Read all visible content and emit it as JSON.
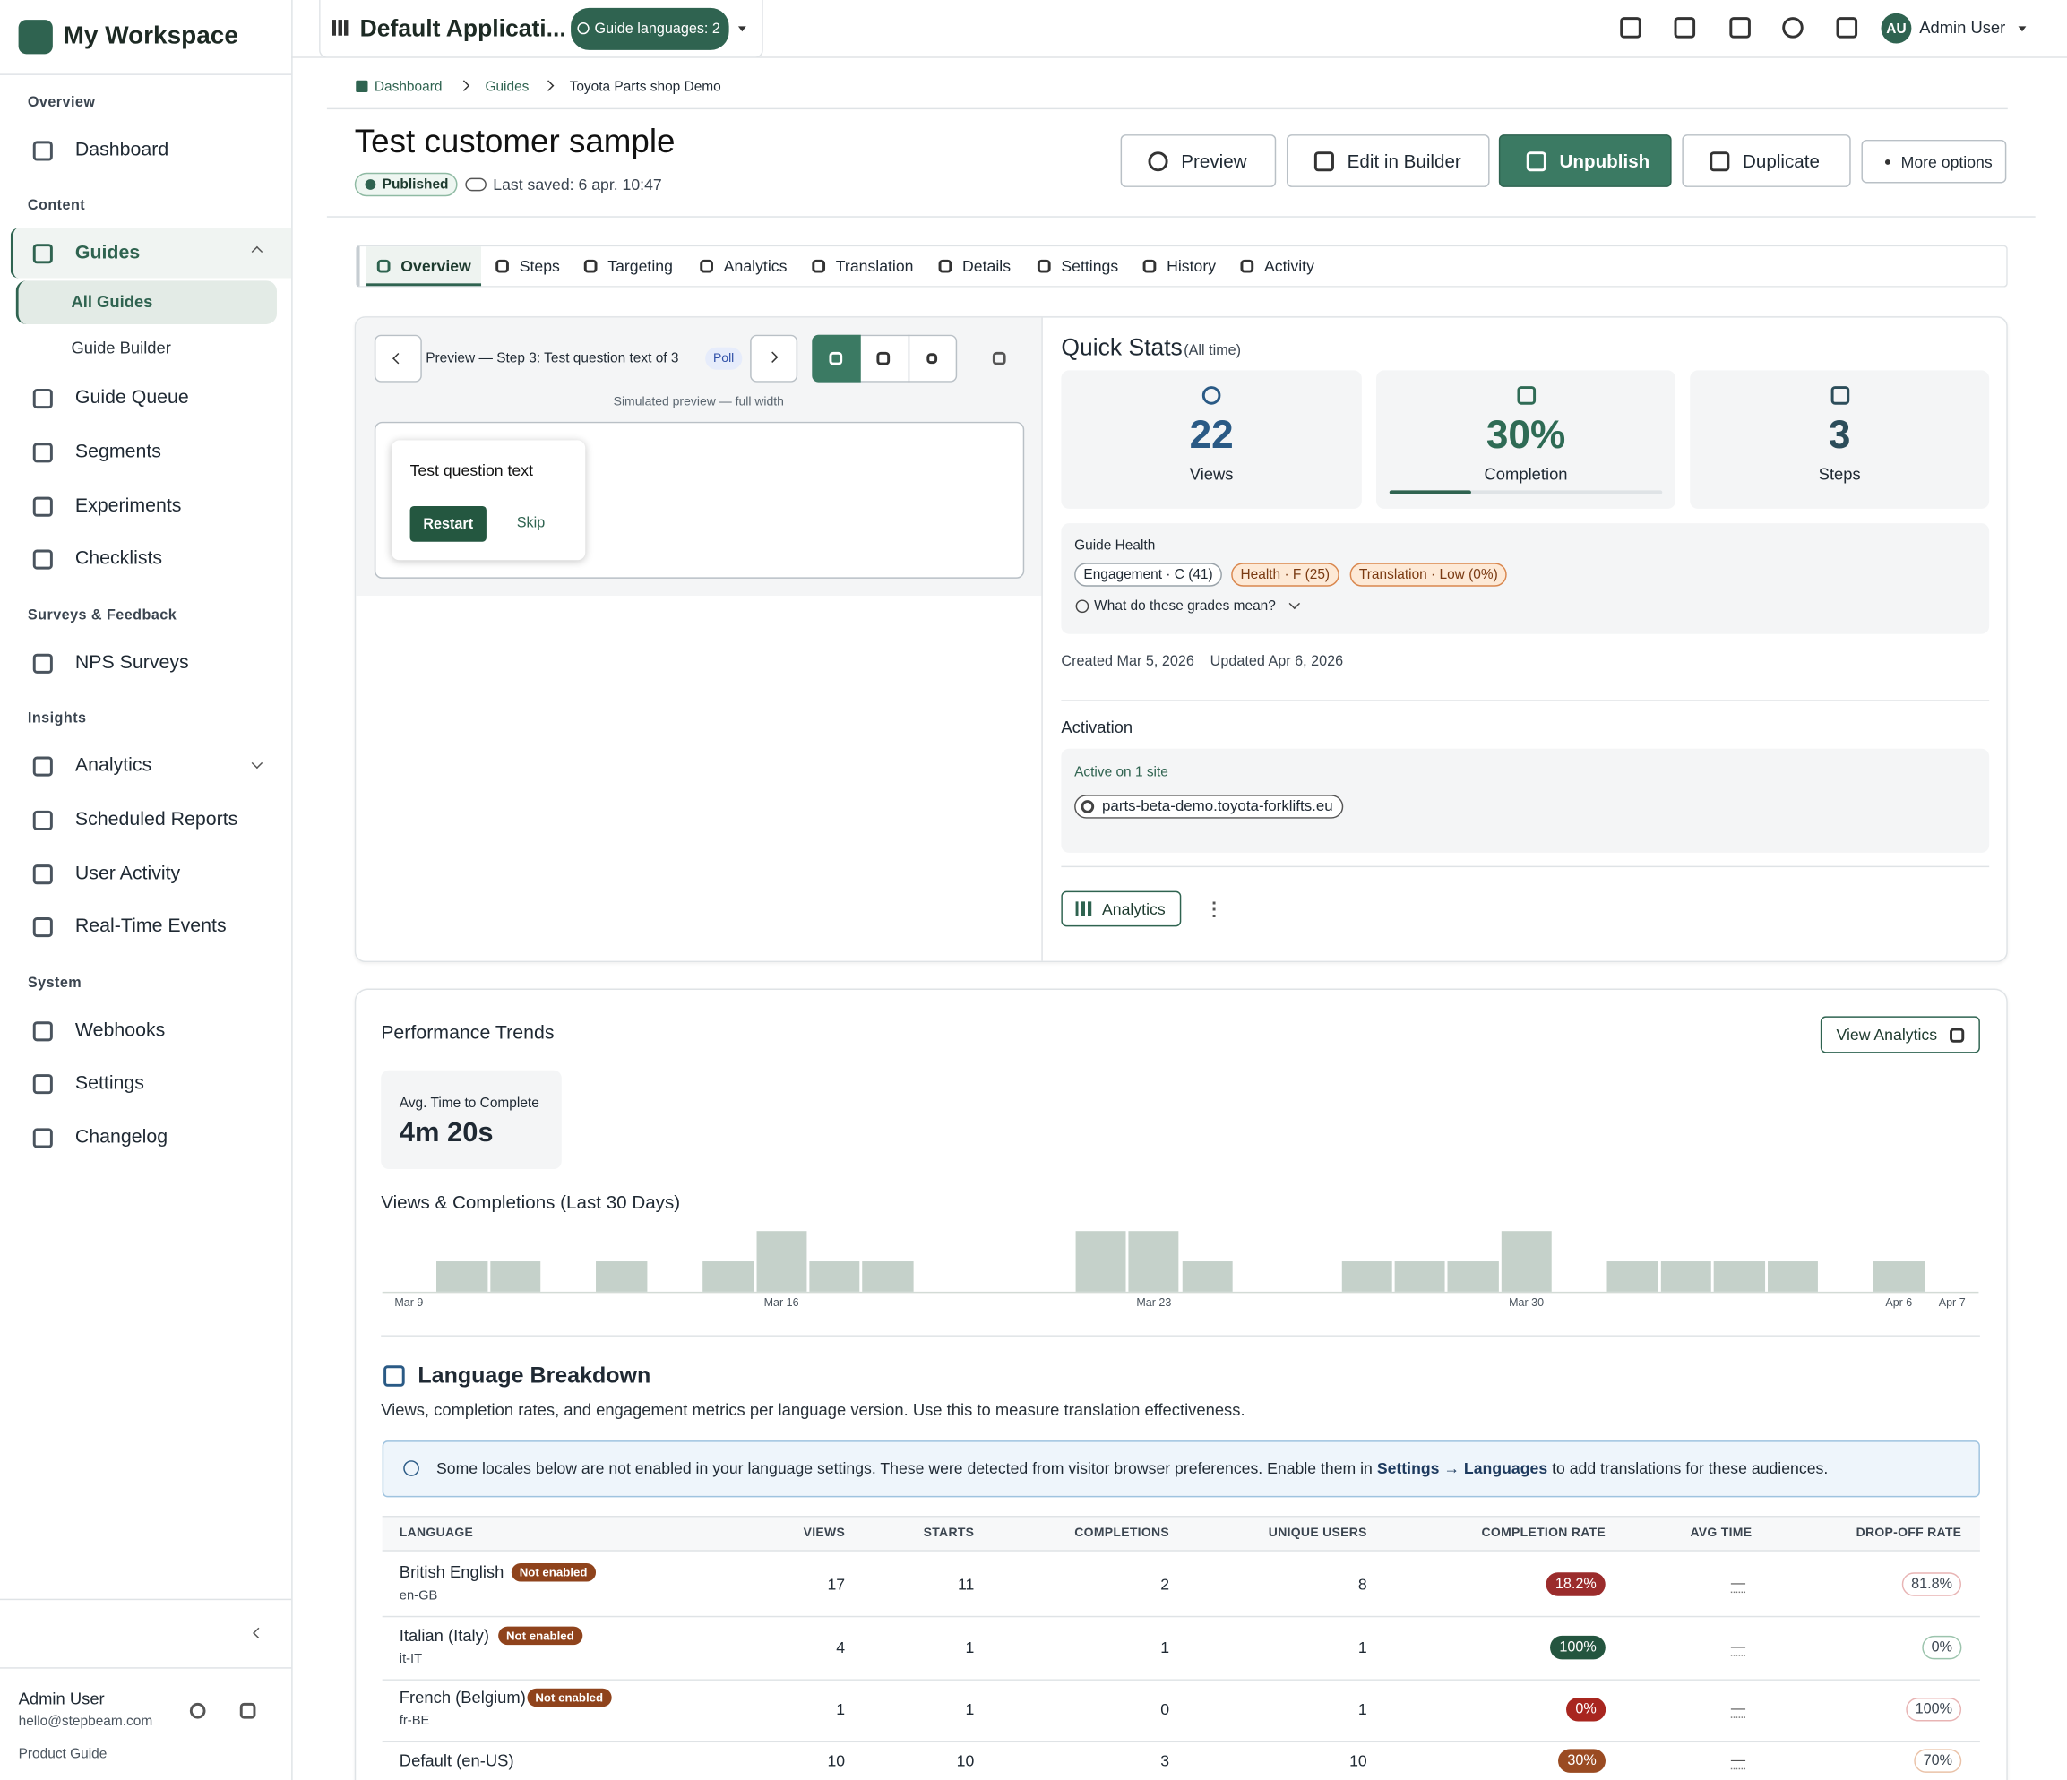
{
  "sidebar": {
    "workspace": "My Workspace",
    "groups": [
      {
        "title": "Overview",
        "items": [
          "Dashboard"
        ]
      },
      {
        "title": "Content",
        "items": [
          "Guides",
          "All Guides",
          "Guide Builder",
          "Guide Queue",
          "Segments",
          "Experiments",
          "Checklists"
        ]
      },
      {
        "title": "Surveys & Feedback",
        "items": [
          "NPS Surveys"
        ]
      },
      {
        "title": "Insights",
        "items": [
          "Analytics",
          "Scheduled Reports",
          "User Activity",
          "Real-Time Events"
        ]
      },
      {
        "title": "System",
        "items": [
          "Webhooks",
          "Settings",
          "Changelog"
        ]
      }
    ],
    "user_name": "Admin User",
    "user_email": "hello@stepbeam.com",
    "footer": "Product Guide"
  },
  "topbar": {
    "app_name": "Default Applicati...",
    "languages": "Guide languages: 2",
    "avatar": "AU",
    "user_name": "Admin User"
  },
  "breadcrumb": [
    "Dashboard",
    "Guides",
    "Toyota Parts shop Demo"
  ],
  "header": {
    "title": "Test customer sample",
    "status": "Published",
    "last_saved": "Last saved: 6 apr. 10:47",
    "actions": [
      "Preview",
      "Edit in Builder",
      "Unpublish",
      "Duplicate",
      "More options"
    ]
  },
  "tabs": [
    "Overview",
    "Steps",
    "Targeting",
    "Analytics",
    "Translation",
    "Details",
    "Settings",
    "History",
    "Activity"
  ],
  "preview": {
    "label": "Preview — Step 3: Test question text of 3",
    "type": "Poll",
    "note": "Simulated preview — full width",
    "question": "Test question text",
    "primary": "Restart",
    "secondary": "Skip"
  },
  "quick_stats": {
    "title": "Quick Stats",
    "period": "(All time)",
    "stats": [
      {
        "value": "22",
        "label": "Views"
      },
      {
        "value": "30%",
        "label": "Completion"
      },
      {
        "value": "3",
        "label": "Steps"
      }
    ],
    "health_title": "Guide Health",
    "grades": [
      "Engagement · C (41)",
      "Health · F (25)",
      "Translation · Low (0%)"
    ],
    "grades_help": "What do these grades mean?",
    "created": "Created Mar 5, 2026",
    "updated": "Updated Apr 6, 2026",
    "activation_title": "Activation",
    "active_sites": "Active on 1 site",
    "sites": [
      "parts-beta-demo.toyota-forklifts.eu"
    ],
    "analytics_button": "Analytics"
  },
  "performance": {
    "title": "Performance Trends",
    "view_button": "View Analytics",
    "avg_label": "Avg. Time to Complete",
    "avg_value": "4m 20s"
  },
  "chart_data": {
    "type": "bar",
    "title": "Views & Completions (Last 30 Days)",
    "color": "#c5d1ca",
    "categories": [
      "Mar 9",
      null,
      null,
      null,
      null,
      null,
      null,
      "Mar 16",
      null,
      null,
      null,
      null,
      null,
      null,
      "Mar 23",
      null,
      null,
      null,
      null,
      null,
      null,
      "Mar 30",
      null,
      null,
      null,
      null,
      null,
      null,
      "Apr 6",
      "Apr 7"
    ],
    "values": [
      0,
      1,
      1,
      0,
      1,
      0,
      1,
      2,
      1,
      1,
      0,
      0,
      0,
      2,
      2,
      1,
      0,
      0,
      1,
      1,
      1,
      2,
      0,
      1,
      1,
      1,
      1,
      0,
      1,
      0
    ]
  },
  "languages": {
    "title": "Language Breakdown",
    "description": "Views, completion rates, and engagement metrics per language version. Use this to measure translation effectiveness.",
    "notice": {
      "before": "Some locales below are not enabled in your language settings. These were detected from visitor browser preferences. Enable them in",
      "link": "Settings → Languages",
      "after": "to add translations for these audiences."
    },
    "columns": [
      "LANGUAGE",
      "VIEWS",
      "STARTS",
      "COMPLETIONS",
      "UNIQUE USERS",
      "COMPLETION RATE",
      "AVG TIME",
      "DROP-OFF RATE"
    ],
    "rows": [
      {
        "language": "British English",
        "badge": "Not enabled",
        "code": "en-GB",
        "cells": [
          17,
          11,
          2,
          8,
          "18.2%",
          "—",
          "81.8%"
        ],
        "rate_color": "#9b2c2c",
        "dropoff_color": "#e8b4b4"
      },
      {
        "language": "Italian (Italy)",
        "badge": "Not enabled",
        "code": "it-IT",
        "cells": [
          4,
          1,
          1,
          1,
          "100%",
          "—",
          "0%"
        ],
        "rate_color": "#24553f",
        "dropoff_color": "#9cc4ad"
      },
      {
        "language": "French (Belgium)",
        "badge": "Not enabled",
        "code": "fr-BE",
        "cells": [
          1,
          1,
          0,
          1,
          "0%",
          "—",
          "100%"
        ],
        "rate_color": "#a8261f",
        "dropoff_color": "#e8b4b4"
      },
      {
        "language": "Default (en-US)",
        "cells": [
          10,
          10,
          3,
          10,
          "30%",
          "—",
          "70%"
        ],
        "rate_color": "#9a4b22",
        "dropoff_color": "#eac2a8"
      }
    ]
  }
}
